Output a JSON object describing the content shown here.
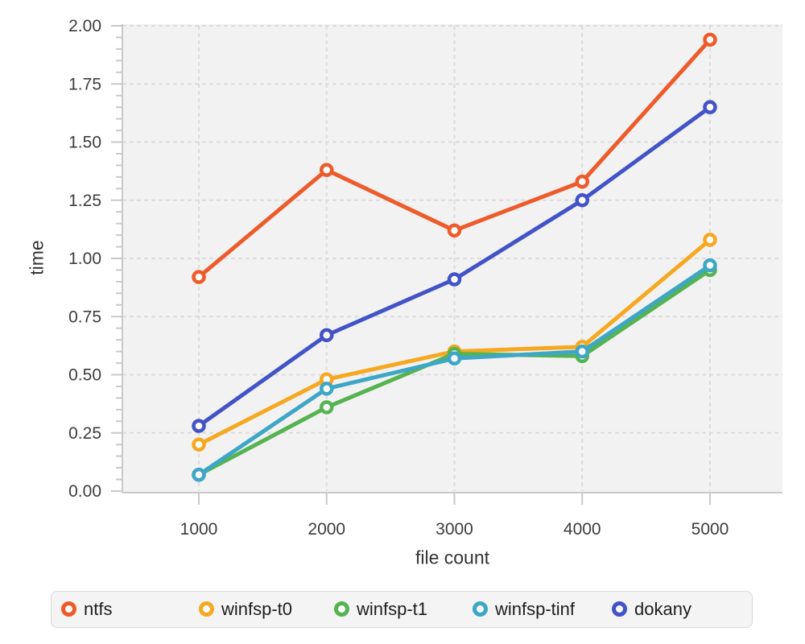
{
  "chart_data": {
    "type": "line",
    "title": "",
    "xlabel": "file count",
    "ylabel": "time",
    "x": [
      1000,
      2000,
      3000,
      4000,
      5000
    ],
    "x_tick_labels": [
      "1000",
      "2000",
      "3000",
      "4000",
      "5000"
    ],
    "xlim": [
      400,
      5600
    ],
    "ylim": [
      0,
      2
    ],
    "y_tick_step": 0.25,
    "y_minor_tick_step": 0.05,
    "y_tick_labels": [
      "0.00",
      "0.25",
      "0.50",
      "0.75",
      "1.00",
      "1.25",
      "1.50",
      "1.75",
      "2.00"
    ],
    "grid": true,
    "grid_style": "dashed",
    "legend_position": "bottom",
    "marker": "open-circle",
    "series": [
      {
        "name": "ntfs",
        "color": "#ee5b2a",
        "values": [
          0.92,
          1.38,
          1.12,
          1.33,
          1.94
        ]
      },
      {
        "name": "winfsp-t0",
        "color": "#f6a821",
        "values": [
          0.2,
          0.48,
          0.6,
          0.62,
          1.08
        ]
      },
      {
        "name": "winfsp-t1",
        "color": "#56b351",
        "values": [
          0.07,
          0.36,
          0.59,
          0.58,
          0.95
        ]
      },
      {
        "name": "winfsp-tinf",
        "color": "#3ea6c6",
        "values": [
          0.07,
          0.44,
          0.57,
          0.6,
          0.97
        ]
      },
      {
        "name": "dokany",
        "color": "#4253c7",
        "values": [
          0.28,
          0.67,
          0.91,
          1.25,
          1.65
        ]
      }
    ],
    "colors": {
      "plot_background": "#f2f2f2",
      "gridline": "#dcdcdc",
      "axis": "#c9c9c9",
      "tick_label": "#3d3d3d",
      "axis_title": "#333333",
      "legend_background": "#f4f4f4",
      "legend_border": "#d9d9d9",
      "legend_text": "#1d1d1f"
    }
  }
}
